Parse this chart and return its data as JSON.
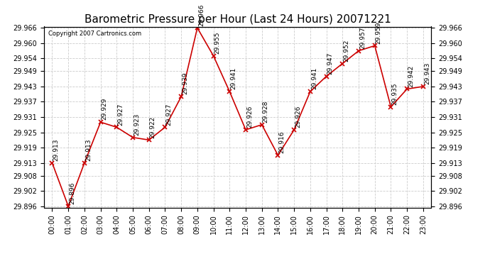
{
  "title": "Barometric Pressure per Hour (Last 24 Hours) 20071221",
  "copyright": "Copyright 2007 Cartronics.com",
  "hours": [
    "00:00",
    "01:00",
    "02:00",
    "03:00",
    "04:00",
    "05:00",
    "06:00",
    "07:00",
    "08:00",
    "09:00",
    "10:00",
    "11:00",
    "12:00",
    "13:00",
    "14:00",
    "15:00",
    "16:00",
    "17:00",
    "18:00",
    "19:00",
    "20:00",
    "21:00",
    "22:00",
    "23:00"
  ],
  "values": [
    29.913,
    29.896,
    29.913,
    29.929,
    29.927,
    29.923,
    29.922,
    29.927,
    29.939,
    29.966,
    29.955,
    29.941,
    29.926,
    29.928,
    29.916,
    29.926,
    29.941,
    29.947,
    29.952,
    29.957,
    29.959,
    29.935,
    29.942,
    29.943
  ],
  "ylim_min": 29.896,
  "ylim_max": 29.966,
  "yticks": [
    29.896,
    29.902,
    29.908,
    29.913,
    29.919,
    29.925,
    29.931,
    29.937,
    29.943,
    29.949,
    29.954,
    29.96,
    29.966
  ],
  "line_color": "#cc0000",
  "marker_color": "#cc0000",
  "bg_color": "#ffffff",
  "grid_color": "#cccccc",
  "label_color": "#000000",
  "title_fontsize": 11,
  "tick_fontsize": 7,
  "annotation_fontsize": 6.5
}
